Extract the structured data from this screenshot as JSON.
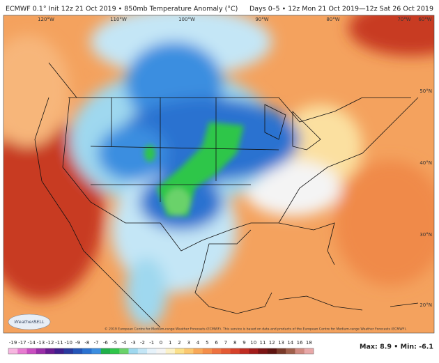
{
  "header": {
    "left": "ECMWF 0.1° Init 12z 21 Oct 2019 • 850mb Temperature Anomaly (°C)",
    "right": "Days 0–5 • 12z Mon 21 Oct 2019—12z Sat 26 Oct 2019"
  },
  "map": {
    "longitude_labels": [
      "120°W",
      "110°W",
      "100°W",
      "90°W",
      "80°W",
      "70°W",
      "60°W"
    ],
    "latitude_labels": [
      "50°N",
      "40°N",
      "30°N",
      "20°N"
    ],
    "copyright": "© 2019 European Centre for Medium-range Weather Forecasts (ECMWF). This service is based on data and products of the European Centre for Medium-range Weather Forecasts (ECMWF).",
    "logo": "WeatherBELL"
  },
  "colorbar": {
    "labels": [
      "-19",
      "-17",
      "-14",
      "-13",
      "-12",
      "-11",
      "-10",
      "-9",
      "-8",
      "-7",
      "-6",
      "-5",
      "-4",
      "-3",
      "-2",
      "-1",
      "0",
      "1",
      "2",
      "3",
      "4",
      "5",
      "6",
      "7",
      "8",
      "9",
      "10",
      "11",
      "12",
      "13",
      "14",
      "16",
      "18"
    ],
    "colors": [
      "#f7b6e0",
      "#e77bd0",
      "#c94ec0",
      "#9a2ea8",
      "#6a1c90",
      "#3f1f8c",
      "#2a3a9e",
      "#2456b8",
      "#2a72d0",
      "#3b8ee0",
      "#1fb04a",
      "#2fc64a",
      "#6ad26a",
      "#9fd8ef",
      "#c4e6f6",
      "#e6f2fa",
      "#f4f4f4",
      "#fbf1c8",
      "#fbe08a",
      "#fbc870",
      "#f8a858",
      "#f48e4a",
      "#ee7240",
      "#e45a34",
      "#d6412a",
      "#c02c22",
      "#a21c1a",
      "#7c1414",
      "#5e1410",
      "#7a3a2a",
      "#a0604c",
      "#d08a80",
      "#e8a8a8"
    ]
  },
  "stats": "Max: 8.9 • Min: -6.1"
}
